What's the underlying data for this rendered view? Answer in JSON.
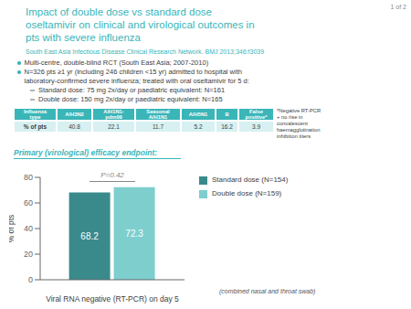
{
  "chart_data": {
    "type": "bar",
    "title": "Impact of double dose vs standard dose\noseltamivir on clinical and virological outcomes in\npts with severe influenza",
    "subtitle": "South East Asia Infectious Disease Clinical Research Network. BMJ 2013;346:f3039",
    "color": "#3ab5b8",
    "annotations": [
      "1 of 2",
      "Multi-centre, double-blind RCT (South East Asia; 2007-2010)",
      "N=326 pts ≥1 yr (including 246 children <15 yr) admitted to hospital with\nlaboratory-confirmed severe influenza; treated with oral oseltamivir for 5 d:",
      "Standard dose: 75 mg 2x/day or paediatric equivalent: N=161",
      "Double dose: 150 mg 2x/day or paediatric equivalent: N=165",
      "*Negative RT-PCR\n+ no rise in\nconvalescent\nhaemagglutination\ninhibition titers",
      "Primary (virological) efficacy endpoint:",
      "P=0.42",
      "(combined nasal and throat swab)"
    ],
    "table": {
      "headers": [
        "Influenza\ntype",
        "A/H3N2",
        "A/H1N1-\npdm09",
        "Seasonal\nA/H1N1",
        "A/H5N1",
        "B",
        "False\npositive*"
      ],
      "rows": [
        [
          "% of pts",
          "40.8",
          "22.1",
          "11.7",
          "5.2",
          "16.2",
          "3.9"
        ]
      ]
    },
    "categories": [
      null
    ],
    "series": [
      {
        "name": "Standard dose (N=154)",
        "color": "#3a8a8c",
        "values": [
          68.2
        ]
      },
      {
        "name": "Double dose (N=159)",
        "color": "#7ecece",
        "values": [
          72.3
        ]
      }
    ],
    "xlabel": "Viral RNA negative (RT-PCR) on day 5",
    "ylabel": "% of pts",
    "ylim": [
      0,
      80
    ],
    "yticks": [
      0,
      20,
      40,
      60,
      80
    ],
    "grid": false,
    "legend": "right",
    "data_labels": true,
    "tick_labels": "y"
  }
}
